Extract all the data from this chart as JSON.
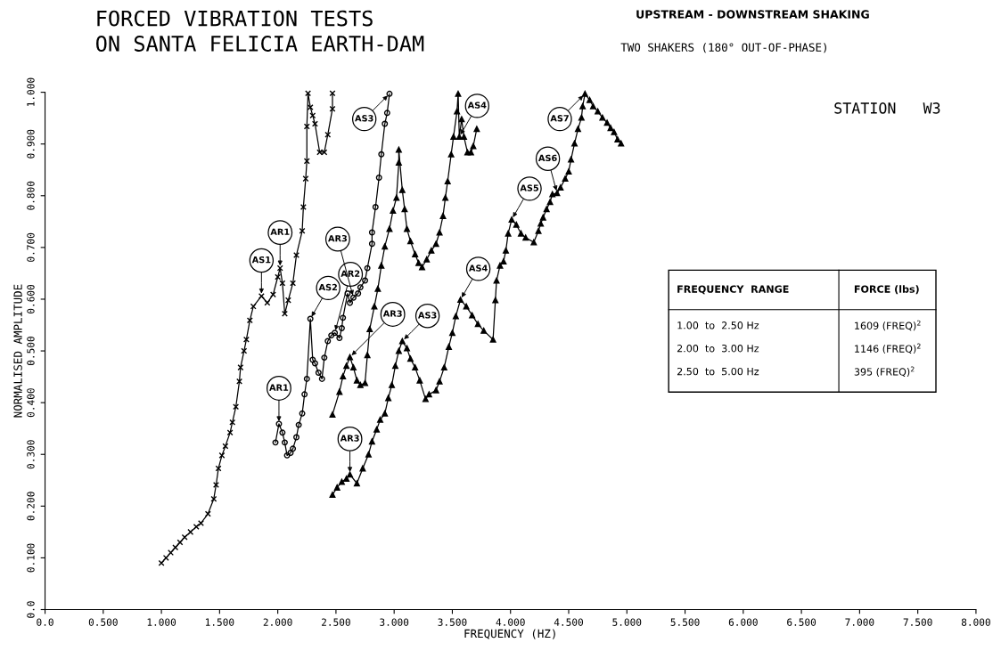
{
  "chart_data": {
    "type": "line",
    "title": "FORCED VIBRATION TESTS\nON SANTA FELICIA EARTH-DAM",
    "xlabel": "FREQUENCY (HZ)",
    "ylabel": "NORMALISED AMPLITUDE",
    "xlim": [
      0,
      8
    ],
    "ylim": [
      0,
      1.0
    ],
    "xticks": [
      {
        "value": 0,
        "label": "0.0"
      },
      {
        "value": 0.5,
        "label": "0.500"
      },
      {
        "value": 1,
        "label": "1.000"
      },
      {
        "value": 1.5,
        "label": "1.500"
      },
      {
        "value": 2,
        "label": "2.000"
      },
      {
        "value": 2.5,
        "label": "2.500"
      },
      {
        "value": 3,
        "label": "3.000"
      },
      {
        "value": 3.5,
        "label": "3.500"
      },
      {
        "value": 4,
        "label": "4.000"
      },
      {
        "value": 4.5,
        "label": "4.500"
      },
      {
        "value": 5,
        "label": "5.000"
      },
      {
        "value": 5.5,
        "label": "5.500"
      },
      {
        "value": 6,
        "label": "6.000"
      },
      {
        "value": 6.5,
        "label": "6.500"
      },
      {
        "value": 7,
        "label": "7.000"
      },
      {
        "value": 7.5,
        "label": "7.500"
      },
      {
        "value": 8,
        "label": "8.000"
      }
    ],
    "yticks": [
      {
        "value": 0,
        "label": "0.0"
      },
      {
        "value": 0.1,
        "label": "0.100"
      },
      {
        "value": 0.2,
        "label": "0.200"
      },
      {
        "value": 0.3,
        "label": "0.300"
      },
      {
        "value": 0.4,
        "label": "0.400"
      },
      {
        "value": 0.5,
        "label": "0.500"
      },
      {
        "value": 0.6,
        "label": "0.600"
      },
      {
        "value": 0.7,
        "label": "0.700"
      },
      {
        "value": 0.8,
        "label": "0.800"
      },
      {
        "value": 0.9,
        "label": "0.900"
      },
      {
        "value": 1.0,
        "label": "1.000"
      }
    ],
    "grid": false,
    "legend": false,
    "line_style": "solid",
    "series": [
      {
        "color": "#000000",
        "marker": "cross",
        "x": [
          1.0,
          1.04,
          1.08,
          1.12,
          1.16,
          1.2,
          1.25,
          1.3,
          1.34,
          1.4,
          1.45,
          1.47,
          1.49,
          1.52,
          1.55,
          1.59,
          1.61,
          1.64,
          1.67,
          1.68,
          1.71,
          1.73,
          1.76,
          1.79,
          1.86,
          1.91,
          1.96,
          2.0,
          2.02,
          2.04,
          2.06,
          2.09,
          2.13,
          2.16,
          2.21,
          2.22,
          2.24,
          2.25,
          2.25,
          2.26,
          2.28,
          2.3,
          2.32,
          2.36,
          2.4,
          2.43,
          2.47,
          2.47
        ],
        "values": [
          0.09,
          0.1,
          0.11,
          0.12,
          0.13,
          0.14,
          0.15,
          0.16,
          0.167,
          0.185,
          0.214,
          0.241,
          0.273,
          0.298,
          0.316,
          0.342,
          0.362,
          0.392,
          0.441,
          0.468,
          0.5,
          0.522,
          0.559,
          0.586,
          0.606,
          0.593,
          0.609,
          0.643,
          0.66,
          0.631,
          0.572,
          0.598,
          0.631,
          0.685,
          0.732,
          0.778,
          0.833,
          0.867,
          0.934,
          0.998,
          0.971,
          0.955,
          0.939,
          0.884,
          0.884,
          0.918,
          0.968,
          0.998
        ]
      },
      {
        "color": "#000000",
        "marker": "circle",
        "x": [
          1.98,
          2.01,
          2.04,
          2.06,
          2.08,
          2.11,
          2.13,
          2.16,
          2.18,
          2.21,
          2.23,
          2.25,
          2.28,
          2.3,
          2.32,
          2.35,
          2.38,
          2.4,
          2.43,
          2.46,
          2.49,
          2.53,
          2.55,
          2.56,
          2.6,
          2.62,
          2.65,
          2.69,
          2.71,
          2.75,
          2.77,
          2.81,
          2.81,
          2.84,
          2.87,
          2.89,
          2.92,
          2.94,
          2.96
        ],
        "values": [
          0.323,
          0.359,
          0.342,
          0.323,
          0.298,
          0.303,
          0.311,
          0.333,
          0.357,
          0.379,
          0.416,
          0.446,
          0.562,
          0.483,
          0.476,
          0.458,
          0.446,
          0.487,
          0.519,
          0.53,
          0.535,
          0.525,
          0.544,
          0.564,
          0.611,
          0.593,
          0.603,
          0.611,
          0.623,
          0.636,
          0.66,
          0.707,
          0.729,
          0.778,
          0.835,
          0.88,
          0.939,
          0.96,
          0.997
        ]
      },
      {
        "color": "#000000",
        "marker": "triangle",
        "x": [
          2.47,
          2.53,
          2.56,
          2.59,
          2.62,
          2.65,
          2.68,
          2.71,
          2.75,
          2.77,
          2.79,
          2.83,
          2.86,
          2.89,
          2.92,
          2.96,
          2.99,
          3.02,
          3.04,
          3.04,
          3.07,
          3.09,
          3.11,
          3.14,
          3.18,
          3.21,
          3.24,
          3.28,
          3.32,
          3.36,
          3.39,
          3.42,
          3.44,
          3.46,
          3.49,
          3.51,
          3.54,
          3.55,
          3.56,
          3.58,
          3.6,
          3.63,
          3.66,
          3.68,
          3.71
        ],
        "values": [
          0.377,
          0.421,
          0.451,
          0.471,
          0.488,
          0.468,
          0.443,
          0.434,
          0.438,
          0.492,
          0.542,
          0.586,
          0.62,
          0.665,
          0.702,
          0.736,
          0.771,
          0.796,
          0.864,
          0.889,
          0.811,
          0.774,
          0.736,
          0.712,
          0.687,
          0.67,
          0.662,
          0.677,
          0.694,
          0.707,
          0.729,
          0.761,
          0.796,
          0.828,
          0.88,
          0.914,
          0.963,
          0.997,
          0.914,
          0.948,
          0.914,
          0.884,
          0.884,
          0.896,
          0.929
        ]
      },
      {
        "color": "#000000",
        "marker": "triangle",
        "x": [
          2.47,
          2.51,
          2.55,
          2.59,
          2.62,
          2.68,
          2.73,
          2.78,
          2.81,
          2.85,
          2.88,
          2.92,
          2.95,
          2.98,
          3.01,
          3.04,
          3.07,
          3.11,
          3.14,
          3.18,
          3.22,
          3.27,
          3.3,
          3.36,
          3.39,
          3.43,
          3.47,
          3.5,
          3.53,
          3.57,
          3.62,
          3.67,
          3.72,
          3.77,
          3.85,
          3.87,
          3.88,
          3.91,
          3.94,
          3.96,
          3.98,
          4.01,
          4.05,
          4.09,
          4.13,
          4.2,
          4.24,
          4.26,
          4.28,
          4.31,
          4.34,
          4.36,
          4.4,
          4.43,
          4.47,
          4.5,
          4.52,
          4.55,
          4.58,
          4.61,
          4.62,
          4.64,
          4.68,
          4.71,
          4.75,
          4.79,
          4.83,
          4.86,
          4.89,
          4.92,
          4.95
        ],
        "values": [
          0.222,
          0.236,
          0.247,
          0.253,
          0.261,
          0.244,
          0.273,
          0.3,
          0.325,
          0.348,
          0.367,
          0.379,
          0.409,
          0.434,
          0.471,
          0.5,
          0.519,
          0.505,
          0.485,
          0.468,
          0.443,
          0.407,
          0.416,
          0.424,
          0.441,
          0.468,
          0.508,
          0.535,
          0.567,
          0.599,
          0.586,
          0.569,
          0.552,
          0.539,
          0.522,
          0.598,
          0.636,
          0.665,
          0.673,
          0.694,
          0.727,
          0.754,
          0.744,
          0.727,
          0.719,
          0.71,
          0.732,
          0.746,
          0.758,
          0.774,
          0.788,
          0.803,
          0.805,
          0.816,
          0.833,
          0.847,
          0.87,
          0.901,
          0.929,
          0.951,
          0.973,
          0.997,
          0.985,
          0.973,
          0.963,
          0.951,
          0.941,
          0.931,
          0.923,
          0.909,
          0.901
        ]
      }
    ],
    "annotations": [
      "UPSTREAM - DOWNSTREAM SHAKING",
      "TWO SHAKERS (180° OUT-OF-PHASE)",
      "STATION   W3",
      "FREQUENCY  RANGE",
      "FORCE (lbs)",
      "1.00  to  2.50 Hz",
      "1609 (FREQ)$^{2}$",
      "2.00  to  3.00 Hz",
      "1146 (FREQ)$^{2}$",
      "2.50  to  5.00 Hz",
      "395 (FREQ)$^{2}$",
      {
        "text": "AS1",
        "x": 1.86,
        "y": 0.606
      },
      {
        "text": "AR1",
        "x": 2.02,
        "y": 0.66
      },
      {
        "text": "AS2",
        "x": 2.28,
        "y": 0.562
      },
      {
        "text": "AR2",
        "x": 2.49,
        "y": 0.535
      },
      {
        "text": "AR3",
        "x": 2.65,
        "y": 0.603
      },
      {
        "text": "AR3",
        "x": 2.62,
        "y": 0.488
      },
      {
        "text": "AR1",
        "x": 2.01,
        "y": 0.359
      },
      {
        "text": "AR3",
        "x": 2.62,
        "y": 0.261
      },
      {
        "text": "AS3",
        "x": 2.96,
        "y": 0.997
      },
      {
        "text": "AS3",
        "x": 3.07,
        "y": 0.519
      },
      {
        "text": "AS4",
        "x": 3.56,
        "y": 0.914
      },
      {
        "text": "AS4",
        "x": 3.57,
        "y": 0.599
      },
      {
        "text": "AS5",
        "x": 4.01,
        "y": 0.754
      },
      {
        "text": "AS6",
        "x": 4.4,
        "y": 0.805
      },
      {
        "text": "AS7",
        "x": 4.64,
        "y": 0.997
      }
    ]
  }
}
